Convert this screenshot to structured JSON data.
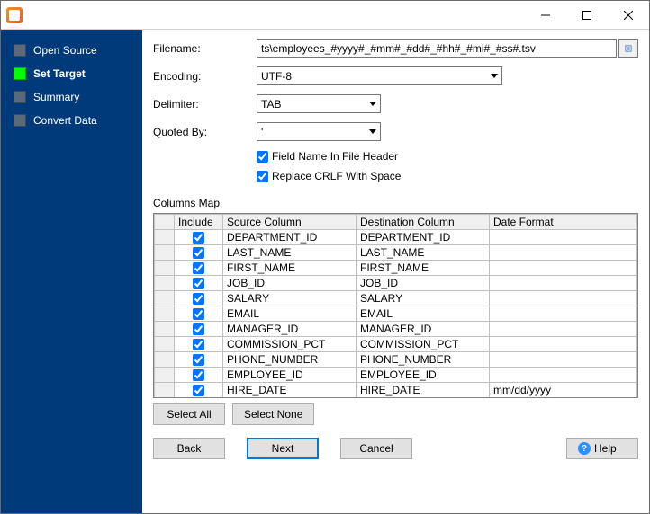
{
  "titlebar": {
    "title": ""
  },
  "sidebar": {
    "items": [
      {
        "label": "Open Source",
        "active": false
      },
      {
        "label": "Set Target",
        "active": true
      },
      {
        "label": "Summary",
        "active": false
      },
      {
        "label": "Convert Data",
        "active": false
      }
    ]
  },
  "form": {
    "filename_label": "Filename:",
    "filename_value": "ts\\employees_#yyyy#_#mm#_#dd#_#hh#_#mi#_#ss#.tsv",
    "encoding_label": "Encoding:",
    "encoding_value": "UTF-8",
    "delimiter_label": "Delimiter:",
    "delimiter_value": "TAB",
    "quoted_label": "Quoted By:",
    "quoted_value": "'",
    "chk_header_label": "Field Name In File Header",
    "chk_header_checked": true,
    "chk_crlf_label": "Replace CRLF With Space",
    "chk_crlf_checked": true
  },
  "columns": {
    "title": "Columns Map",
    "headers": [
      "",
      "Include",
      "Source Column",
      "Destination Column",
      "Date Format"
    ],
    "rows": [
      {
        "include": true,
        "source": "DEPARTMENT_ID",
        "dest": "DEPARTMENT_ID",
        "fmt": ""
      },
      {
        "include": true,
        "source": "LAST_NAME",
        "dest": "LAST_NAME",
        "fmt": ""
      },
      {
        "include": true,
        "source": "FIRST_NAME",
        "dest": "FIRST_NAME",
        "fmt": ""
      },
      {
        "include": true,
        "source": "JOB_ID",
        "dest": "JOB_ID",
        "fmt": ""
      },
      {
        "include": true,
        "source": "SALARY",
        "dest": "SALARY",
        "fmt": ""
      },
      {
        "include": true,
        "source": "EMAIL",
        "dest": "EMAIL",
        "fmt": ""
      },
      {
        "include": true,
        "source": "MANAGER_ID",
        "dest": "MANAGER_ID",
        "fmt": ""
      },
      {
        "include": true,
        "source": "COMMISSION_PCT",
        "dest": "COMMISSION_PCT",
        "fmt": ""
      },
      {
        "include": true,
        "source": "PHONE_NUMBER",
        "dest": "PHONE_NUMBER",
        "fmt": ""
      },
      {
        "include": true,
        "source": "EMPLOYEE_ID",
        "dest": "EMPLOYEE_ID",
        "fmt": ""
      },
      {
        "include": true,
        "source": "HIRE_DATE",
        "dest": "HIRE_DATE",
        "fmt": "mm/dd/yyyy"
      }
    ],
    "col_widths": [
      "22px",
      "54px",
      "148px",
      "148px",
      "auto"
    ]
  },
  "buttons": {
    "select_all": "Select All",
    "select_none": "Select None",
    "back": "Back",
    "next": "Next",
    "cancel": "Cancel",
    "help": "Help"
  }
}
